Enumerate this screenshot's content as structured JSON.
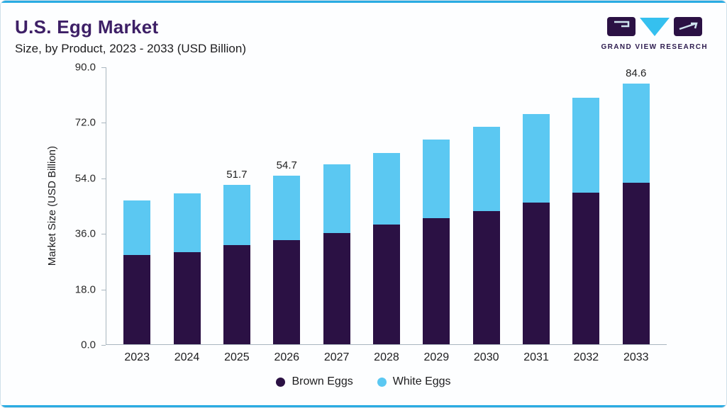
{
  "header": {
    "title": "U.S. Egg Market",
    "subtitle": "Size, by Product, 2023 - 2033 (USD Billion)",
    "logo_text": "GRAND VIEW RESEARCH"
  },
  "colors": {
    "accent_line": "#29abe2",
    "title_text": "#3d1f66",
    "brown_eggs": "#2b1144",
    "white_eggs": "#5bc8f2",
    "axis": "#a9b6bf"
  },
  "chart_data": {
    "type": "bar",
    "stacked": true,
    "title": "U.S. Egg Market",
    "subtitle": "Size, by Product, 2023 - 2033 (USD Billion)",
    "xlabel": "",
    "ylabel": "Market Size (USD Billion)",
    "ylim": [
      0,
      90
    ],
    "yticks": [
      0,
      18,
      36,
      54,
      72,
      90
    ],
    "grid": false,
    "legend_position": "bottom",
    "categories": [
      "2023",
      "2024",
      "2025",
      "2026",
      "2027",
      "2028",
      "2029",
      "2030",
      "2031",
      "2032",
      "2033"
    ],
    "series": [
      {
        "name": "Brown Eggs",
        "color": "#2b1144",
        "values": [
          28.9,
          29.8,
          32.1,
          33.7,
          36.1,
          38.7,
          40.9,
          43.2,
          45.9,
          49.1,
          52.3
        ]
      },
      {
        "name": "White Eggs",
        "color": "#5bc8f2",
        "values": [
          17.6,
          19.2,
          19.6,
          21.0,
          22.3,
          23.4,
          25.4,
          27.2,
          28.7,
          30.8,
          32.3
        ]
      }
    ],
    "totals": [
      46.5,
      49.0,
      51.7,
      54.7,
      58.4,
      62.1,
      66.3,
      70.4,
      74.6,
      79.9,
      84.6
    ],
    "data_labels": [
      "",
      "",
      "51.7",
      "54.7",
      "",
      "",
      "",
      "",
      "",
      "",
      "84.6"
    ]
  }
}
